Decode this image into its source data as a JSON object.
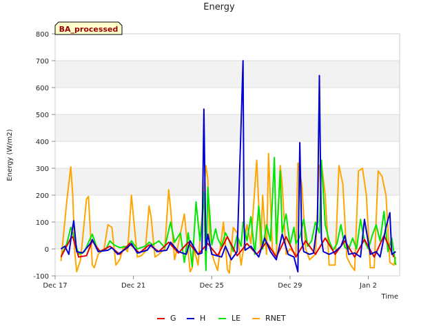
{
  "chart_data": {
    "type": "line",
    "title": "Energy",
    "xlabel": "Time",
    "ylabel": "Energy (W/m2)",
    "badge": "BA_processed",
    "ylim": [
      -100,
      800
    ],
    "yticks": [
      -100,
      0,
      100,
      200,
      300,
      400,
      500,
      600,
      700,
      800
    ],
    "xlim": [
      0,
      17.6
    ],
    "xticks": [
      {
        "day": 0,
        "label": "Dec 17"
      },
      {
        "day": 4,
        "label": "Dec 21"
      },
      {
        "day": 8,
        "label": "Dec 25"
      },
      {
        "day": 12,
        "label": "Dec 29"
      },
      {
        "day": 16,
        "label": "Jan 2"
      }
    ],
    "grid": true,
    "legend_position": "bottom",
    "colors": {
      "G": "#e00000",
      "H": "#0000cc",
      "LE": "#00e600",
      "RNET": "#ffa500",
      "band": "#f2f2f2",
      "grid": "#dddddd",
      "badge_bg": "#ffffcc",
      "badge_text": "#990000"
    },
    "legend": [
      "G",
      "H",
      "LE",
      "RNET"
    ],
    "series": [
      {
        "name": "G",
        "x": [
          0.3,
          0.8,
          0.9,
          1.2,
          1.6,
          1.9,
          2.3,
          2.8,
          3.3,
          3.8,
          4.3,
          4.8,
          5.3,
          5.8,
          6.3,
          6.8,
          7.3,
          7.8,
          8.3,
          8.8,
          9.3,
          9.8,
          10.3,
          10.8,
          11.3,
          11.8,
          12.3,
          12.8,
          13.3,
          13.8,
          14.3,
          14.8,
          15.3,
          15.8,
          16.3,
          16.8,
          17.3
        ],
        "values": [
          -30,
          40,
          45,
          -30,
          -25,
          30,
          -10,
          10,
          -20,
          20,
          -15,
          15,
          -10,
          25,
          -15,
          25,
          -20,
          20,
          -25,
          45,
          -25,
          20,
          -20,
          25,
          -30,
          45,
          -30,
          30,
          -20,
          40,
          -20,
          30,
          -30,
          35,
          -30,
          50,
          -30
        ]
      },
      {
        "name": "H",
        "x": [
          0.3,
          0.5,
          0.7,
          0.85,
          0.95,
          1.1,
          1.4,
          1.8,
          1.9,
          2.2,
          2.7,
          2.9,
          3.2,
          3.7,
          3.9,
          4.2,
          4.7,
          4.9,
          5.2,
          5.7,
          5.9,
          6.3,
          6.7,
          6.9,
          7.3,
          7.5,
          7.6,
          7.7,
          7.8,
          8.0,
          8.5,
          8.7,
          9.0,
          9.3,
          9.6,
          9.65,
          9.7,
          10.0,
          10.4,
          10.7,
          11.0,
          11.3,
          11.6,
          11.9,
          12.2,
          12.4,
          12.5,
          12.6,
          12.7,
          13.0,
          13.2,
          13.4,
          13.5,
          13.6,
          13.7,
          14.0,
          14.3,
          14.6,
          14.8,
          15.0,
          15.3,
          15.6,
          15.8,
          16.1,
          16.4,
          16.6,
          16.9,
          17.1,
          17.2,
          17.4
        ],
        "values": [
          0,
          10,
          -20,
          60,
          105,
          -10,
          -15,
          20,
          35,
          -10,
          -5,
          5,
          -20,
          5,
          20,
          -15,
          -5,
          15,
          -10,
          -5,
          25,
          -10,
          -20,
          30,
          -20,
          -15,
          520,
          -5,
          55,
          -20,
          -30,
          10,
          -40,
          -10,
          700,
          100,
          -5,
          10,
          -30,
          40,
          -10,
          -40,
          55,
          -20,
          -30,
          -85,
          395,
          35,
          -10,
          -20,
          -15,
          100,
          645,
          40,
          -10,
          -20,
          -10,
          10,
          50,
          -20,
          -15,
          -30,
          110,
          -20,
          -10,
          -30,
          80,
          135,
          -20,
          -10
        ]
      },
      {
        "name": "LE",
        "x": [
          0.3,
          0.6,
          0.8,
          0.9,
          1.0,
          1.2,
          1.5,
          1.8,
          1.9,
          2.2,
          2.6,
          2.8,
          3.0,
          3.3,
          3.7,
          3.9,
          4.2,
          4.6,
          4.8,
          5.0,
          5.3,
          5.6,
          5.9,
          6.1,
          6.4,
          6.6,
          6.8,
          7.0,
          7.2,
          7.4,
          7.5,
          7.6,
          7.7,
          7.8,
          7.9,
          8.0,
          8.2,
          8.3,
          8.5,
          8.7,
          8.9,
          9.1,
          9.3,
          9.5,
          9.6,
          9.8,
          10.0,
          10.2,
          10.4,
          10.6,
          10.8,
          11.0,
          11.2,
          11.3,
          11.5,
          11.6,
          11.8,
          12.0,
          12.2,
          12.3,
          12.5,
          12.7,
          12.9,
          13.1,
          13.3,
          13.5,
          13.6,
          13.8,
          14.0,
          14.2,
          14.4,
          14.6,
          14.8,
          15.0,
          15.2,
          15.4,
          15.6,
          15.8,
          16.0,
          16.2,
          16.4,
          16.6,
          16.8,
          17.0,
          17.2,
          17.4
        ],
        "values": [
          -30,
          20,
          80,
          60,
          30,
          -20,
          -10,
          40,
          55,
          -10,
          0,
          30,
          15,
          5,
          10,
          30,
          0,
          10,
          25,
          15,
          30,
          5,
          100,
          25,
          60,
          -50,
          60,
          -65,
          175,
          30,
          100,
          210,
          -80,
          230,
          130,
          15,
          75,
          40,
          10,
          60,
          30,
          -10,
          50,
          10,
          100,
          30,
          120,
          -20,
          160,
          0,
          90,
          30,
          340,
          20,
          290,
          60,
          130,
          15,
          80,
          20,
          45,
          110,
          10,
          30,
          100,
          60,
          330,
          90,
          30,
          -5,
          20,
          90,
          5,
          0,
          40,
          0,
          110,
          30,
          0,
          50,
          90,
          30,
          140,
          -10,
          40,
          -60
        ]
      },
      {
        "name": "RNET",
        "x": [
          0.3,
          0.6,
          0.8,
          0.9,
          1.0,
          1.1,
          1.3,
          1.6,
          1.7,
          1.9,
          2.0,
          2.2,
          2.5,
          2.7,
          2.9,
          3.1,
          3.3,
          3.5,
          3.7,
          3.9,
          4.0,
          4.2,
          4.4,
          4.6,
          4.8,
          4.9,
          5.1,
          5.3,
          5.6,
          5.8,
          5.9,
          6.1,
          6.3,
          6.6,
          6.9,
          7.0,
          7.1,
          7.3,
          7.5,
          7.7,
          7.8,
          7.9,
          8.1,
          8.3,
          8.6,
          8.8,
          8.9,
          9.1,
          9.3,
          9.5,
          9.8,
          10.0,
          10.3,
          10.5,
          10.6,
          10.8,
          10.9,
          11.1,
          11.3,
          11.5,
          11.6,
          11.8,
          12.0,
          12.3,
          12.4,
          12.6,
          12.8,
          13.0,
          13.3,
          13.5,
          13.6,
          13.8,
          14.0,
          14.3,
          14.5,
          14.7,
          14.9,
          15.1,
          15.3,
          15.5,
          15.7,
          15.9,
          16.1,
          16.3,
          16.5,
          16.7,
          16.9,
          17.1,
          17.3,
          17.4
        ],
        "values": [
          -45,
          180,
          305,
          200,
          -10,
          -85,
          -40,
          185,
          195,
          -60,
          -70,
          -20,
          0,
          90,
          80,
          -60,
          -40,
          10,
          -10,
          200,
          120,
          -30,
          -25,
          -10,
          160,
          120,
          -30,
          -20,
          0,
          220,
          150,
          -40,
          20,
          130,
          -85,
          -70,
          0,
          -60,
          120,
          310,
          260,
          20,
          -40,
          -80,
          100,
          -75,
          -90,
          80,
          60,
          -60,
          90,
          20,
          330,
          0,
          200,
          -20,
          355,
          0,
          -30,
          310,
          240,
          -20,
          0,
          -20,
          320,
          240,
          0,
          -40,
          -20,
          310,
          320,
          200,
          -60,
          -60,
          310,
          240,
          -30,
          -60,
          -80,
          290,
          300,
          200,
          -70,
          -70,
          290,
          270,
          200,
          -50,
          -60,
          -30
        ]
      }
    ]
  }
}
